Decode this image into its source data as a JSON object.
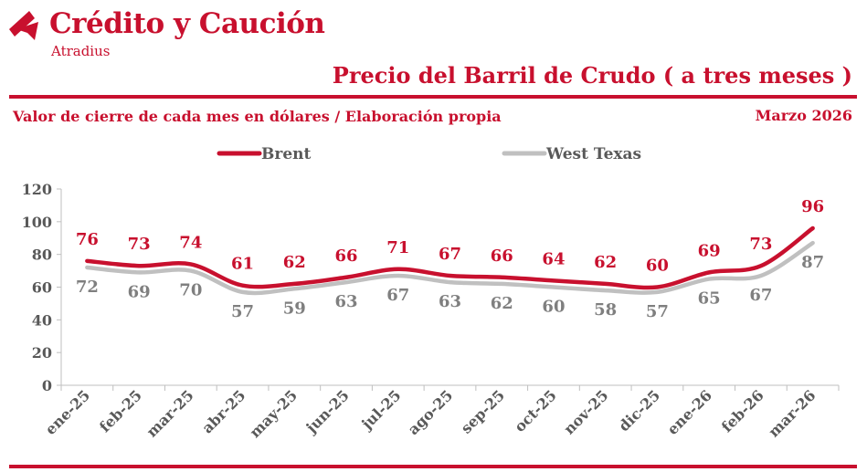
{
  "header": {
    "brand": "Crédito y Caución",
    "sub_brand": "Atradius",
    "title": "Precio del Barril de Crudo ( a tres meses )",
    "subtitle": "Valor de cierre de cada mes en dólares / Elaboración propia",
    "date": "Marzo  2026"
  },
  "colors": {
    "accent": "#c8102e",
    "brent": "#c8102e",
    "wti": "#c0c0c0",
    "wti_label": "#7f7f7f",
    "axis_text": "#595959"
  },
  "chart_data": {
    "type": "line",
    "categories": [
      "ene-25",
      "feb-25",
      "mar-25",
      "abr-25",
      "may-25",
      "jun-25",
      "jul-25",
      "ago-25",
      "sep-25",
      "oct-25",
      "nov-25",
      "dic-25",
      "ene-26",
      "feb-26",
      "mar-26"
    ],
    "series": [
      {
        "name": "Brent",
        "values": [
          76,
          73,
          74,
          61,
          62,
          66,
          71,
          67,
          66,
          64,
          62,
          60,
          69,
          73,
          96
        ],
        "label_position": "above"
      },
      {
        "name": "West Texas",
        "values": [
          72,
          69,
          70,
          57,
          59,
          63,
          67,
          63,
          62,
          60,
          58,
          57,
          65,
          67,
          87
        ],
        "label_position": "below"
      }
    ],
    "ylim": [
      0,
      120
    ],
    "yticks": [
      0,
      20,
      40,
      60,
      80,
      100,
      120
    ],
    "grid": false,
    "legend": "top-center",
    "smooth": true,
    "xlabel": "",
    "ylabel": ""
  }
}
